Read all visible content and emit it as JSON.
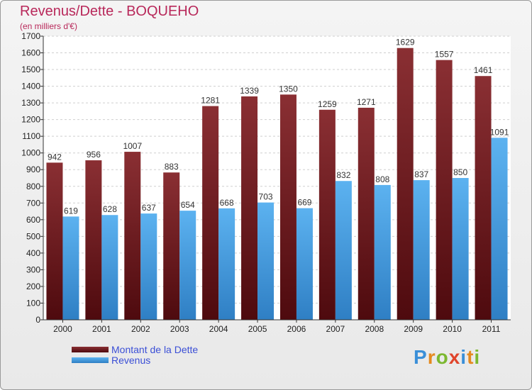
{
  "title": "Revenus/Dette - BOQUEHO",
  "subtitle": "(en milliers d'€)",
  "logo": "Proxiti",
  "chart_data": {
    "type": "bar",
    "title": "Revenus/Dette - BOQUEHO",
    "subtitle": "(en milliers d'€)",
    "categories": [
      "2000",
      "2001",
      "2002",
      "2003",
      "2004",
      "2005",
      "2006",
      "2007",
      "2008",
      "2009",
      "2010",
      "2011"
    ],
    "series": [
      {
        "name": "Montant de la Dette",
        "color": "#7a1f24",
        "values": [
          942,
          956,
          1007,
          883,
          1281,
          1339,
          1350,
          1259,
          1271,
          1629,
          1557,
          1461
        ]
      },
      {
        "name": "Revenus",
        "color": "#3f9be0",
        "values": [
          619,
          628,
          637,
          654,
          668,
          703,
          669,
          832,
          808,
          837,
          850,
          1091
        ]
      }
    ],
    "ylim": [
      0,
      1700
    ],
    "ytick_step": 100,
    "grid": true,
    "legend": "bottom-left"
  }
}
